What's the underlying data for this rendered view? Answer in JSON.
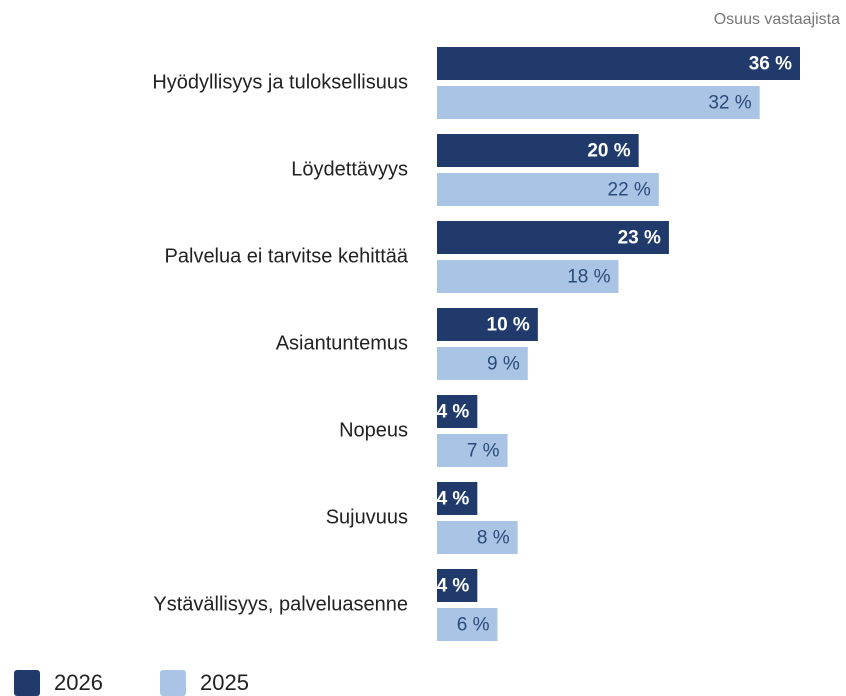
{
  "chart_data": {
    "type": "bar",
    "orientation": "horizontal",
    "subtitle": "Osuus vastaajista",
    "categories": [
      "Hyödyllisyys ja tuloksellisuus",
      "Löydettävyys",
      "Palvelua ei tarvitse kehittää",
      "Asiantuntemus",
      "Nopeus",
      "Sujuvuus",
      "Ystävällisyys, palveluasenne"
    ],
    "series": [
      {
        "name": "2026",
        "color": "#1f3a6b",
        "values": [
          36,
          20,
          23,
          10,
          4,
          4,
          4
        ],
        "value_labels": [
          "36 %",
          "20 %",
          "23 %",
          "10 %",
          "4 %",
          "4 %",
          "4 %"
        ]
      },
      {
        "name": "2025",
        "color": "#a9c4e4",
        "values": [
          32,
          22,
          18,
          9,
          7,
          8,
          6
        ],
        "value_labels": [
          "32 %",
          "22 %",
          "18 %",
          "9 %",
          "7 %",
          "8 %",
          "6 %"
        ]
      }
    ],
    "legend": "bottom-left"
  }
}
